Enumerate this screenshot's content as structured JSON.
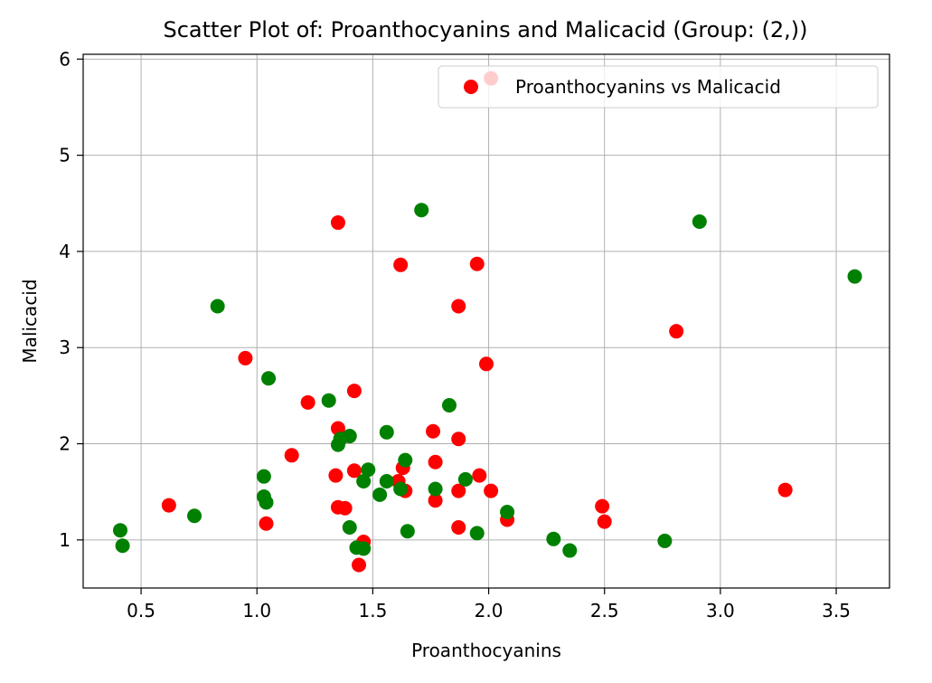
{
  "chart_data": {
    "type": "scatter",
    "title": "Scatter Plot of: Proanthocyanins and Malicacid (Group: (2,))",
    "xlabel": "Proanthocyanins",
    "ylabel": "Malicacid",
    "xlim": [
      0.25,
      3.73
    ],
    "ylim": [
      0.5,
      6.05
    ],
    "xticks": [
      0.5,
      1.0,
      1.5,
      2.0,
      2.5,
      3.0,
      3.5
    ],
    "xtick_labels": [
      "0.5",
      "1.0",
      "1.5",
      "2.0",
      "2.5",
      "3.0",
      "3.5"
    ],
    "yticks": [
      1,
      2,
      3,
      4,
      5,
      6
    ],
    "ytick_labels": [
      "1",
      "2",
      "3",
      "4",
      "5",
      "6"
    ],
    "grid": true,
    "legend": {
      "position": "top-right",
      "label": "Proanthocyanins vs Malicacid"
    },
    "series": [
      {
        "name": "Proanthocyanins vs Malicacid",
        "color": "#ff0000",
        "points": [
          [
            0.62,
            1.36
          ],
          [
            0.95,
            2.89
          ],
          [
            1.04,
            1.17
          ],
          [
            1.15,
            1.88
          ],
          [
            1.22,
            2.43
          ],
          [
            1.34,
            1.67
          ],
          [
            1.35,
            4.3
          ],
          [
            1.35,
            2.16
          ],
          [
            1.35,
            1.34
          ],
          [
            1.38,
            1.33
          ],
          [
            1.42,
            2.55
          ],
          [
            1.42,
            1.72
          ],
          [
            1.44,
            0.74
          ],
          [
            1.46,
            0.98
          ],
          [
            1.61,
            1.61
          ],
          [
            1.62,
            3.86
          ],
          [
            1.63,
            1.75
          ],
          [
            1.64,
            1.51
          ],
          [
            1.76,
            2.13
          ],
          [
            1.77,
            1.81
          ],
          [
            1.77,
            1.41
          ],
          [
            1.87,
            3.43
          ],
          [
            1.87,
            2.05
          ],
          [
            1.87,
            1.51
          ],
          [
            1.87,
            1.13
          ],
          [
            1.95,
            3.87
          ],
          [
            1.96,
            1.67
          ],
          [
            1.99,
            2.83
          ],
          [
            2.01,
            1.51
          ],
          [
            2.01,
            5.8
          ],
          [
            2.08,
            1.21
          ],
          [
            2.49,
            1.35
          ],
          [
            2.5,
            1.19
          ],
          [
            2.81,
            3.17
          ],
          [
            3.28,
            1.52
          ]
        ]
      },
      {
        "color": "#008000",
        "points": [
          [
            0.41,
            1.1
          ],
          [
            0.42,
            0.94
          ],
          [
            0.73,
            1.25
          ],
          [
            0.83,
            3.43
          ],
          [
            1.03,
            1.66
          ],
          [
            1.03,
            1.45
          ],
          [
            1.04,
            1.39
          ],
          [
            1.05,
            2.68
          ],
          [
            1.31,
            2.45
          ],
          [
            1.35,
            1.99
          ],
          [
            1.36,
            2.05
          ],
          [
            1.4,
            2.08
          ],
          [
            1.4,
            1.13
          ],
          [
            1.43,
            0.92
          ],
          [
            1.46,
            0.91
          ],
          [
            1.46,
            1.61
          ],
          [
            1.48,
            1.73
          ],
          [
            1.53,
            1.47
          ],
          [
            1.56,
            2.12
          ],
          [
            1.56,
            1.61
          ],
          [
            1.62,
            1.53
          ],
          [
            1.64,
            1.83
          ],
          [
            1.65,
            1.09
          ],
          [
            1.71,
            4.43
          ],
          [
            1.77,
            1.53
          ],
          [
            1.83,
            2.4
          ],
          [
            1.9,
            1.63
          ],
          [
            1.95,
            1.07
          ],
          [
            2.08,
            1.29
          ],
          [
            2.28,
            1.01
          ],
          [
            2.35,
            0.89
          ],
          [
            2.76,
            0.99
          ],
          [
            2.91,
            4.31
          ],
          [
            3.58,
            3.74
          ]
        ]
      }
    ]
  }
}
